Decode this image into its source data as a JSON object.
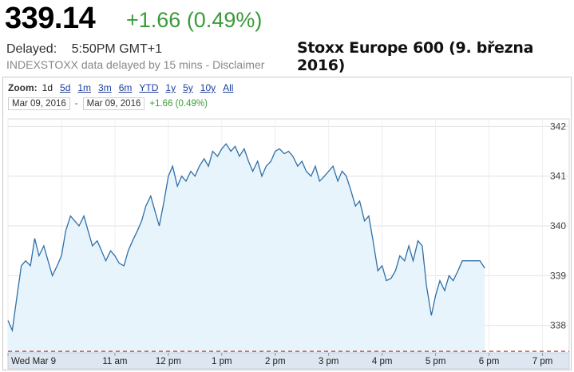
{
  "quote": {
    "price": "339.14",
    "change": "+1.66 (0.49%)",
    "delayed_label": "Delayed:",
    "delayed_time": "5:50PM GMT+1",
    "source_note": "INDEXSTOXX data delayed by 15 mins - Disclaimer"
  },
  "headline": "Stoxx Europe 600 (9. března 2016)",
  "zoom": {
    "label": "Zoom:",
    "options": [
      "1d",
      "5d",
      "1m",
      "3m",
      "6m",
      "YTD",
      "1y",
      "5y",
      "10y",
      "All"
    ],
    "selected": "1d"
  },
  "range": {
    "from": "Mar 09, 2016",
    "separator": "-",
    "to": "Mar 09, 2016",
    "change": "+1.66 (0.49%)"
  },
  "colors": {
    "price_up": "#3a9a3a",
    "line": "#2f6fa8",
    "area_fill": "#e8f4fc",
    "previous_close_line": "#c0392b",
    "link": "#1a3d9c"
  },
  "chart_data": {
    "type": "area",
    "title": "",
    "xlabel": "",
    "ylabel": "",
    "x_ticks": [
      "Wed Mar 9",
      "11 am",
      "12 pm",
      "1 pm",
      "2 pm",
      "3 pm",
      "4 pm",
      "5 pm",
      "6 pm",
      "7 pm"
    ],
    "y_ticks": [
      338,
      339,
      340,
      341,
      342
    ],
    "ylim": [
      337.45,
      342.15
    ],
    "xlim_hours": [
      9.0,
      19.5
    ],
    "grid": true,
    "previous_close": 337.48,
    "series": [
      {
        "points": [
          [
            9.0,
            338.1
          ],
          [
            9.08,
            337.9
          ],
          [
            9.17,
            338.6
          ],
          [
            9.25,
            339.2
          ],
          [
            9.33,
            339.3
          ],
          [
            9.42,
            339.2
          ],
          [
            9.5,
            339.75
          ],
          [
            9.58,
            339.4
          ],
          [
            9.67,
            339.6
          ],
          [
            9.75,
            339.3
          ],
          [
            9.83,
            339.0
          ],
          [
            9.92,
            339.2
          ],
          [
            10.0,
            339.4
          ],
          [
            10.08,
            339.9
          ],
          [
            10.17,
            340.2
          ],
          [
            10.25,
            340.1
          ],
          [
            10.33,
            340.0
          ],
          [
            10.42,
            340.2
          ],
          [
            10.5,
            339.9
          ],
          [
            10.58,
            339.6
          ],
          [
            10.67,
            339.7
          ],
          [
            10.75,
            339.5
          ],
          [
            10.83,
            339.3
          ],
          [
            10.92,
            339.5
          ],
          [
            11.0,
            339.4
          ],
          [
            11.08,
            339.25
          ],
          [
            11.17,
            339.2
          ],
          [
            11.25,
            339.5
          ],
          [
            11.33,
            339.7
          ],
          [
            11.42,
            339.9
          ],
          [
            11.5,
            340.1
          ],
          [
            11.58,
            340.4
          ],
          [
            11.67,
            340.6
          ],
          [
            11.75,
            340.3
          ],
          [
            11.83,
            340.0
          ],
          [
            11.92,
            340.5
          ],
          [
            12.0,
            341.0
          ],
          [
            12.08,
            341.2
          ],
          [
            12.17,
            340.8
          ],
          [
            12.25,
            341.0
          ],
          [
            12.33,
            340.9
          ],
          [
            12.42,
            341.1
          ],
          [
            12.5,
            341.0
          ],
          [
            12.58,
            341.2
          ],
          [
            12.67,
            341.35
          ],
          [
            12.75,
            341.2
          ],
          [
            12.83,
            341.5
          ],
          [
            12.92,
            341.4
          ],
          [
            13.0,
            341.55
          ],
          [
            13.08,
            341.65
          ],
          [
            13.17,
            341.5
          ],
          [
            13.25,
            341.6
          ],
          [
            13.33,
            341.4
          ],
          [
            13.42,
            341.55
          ],
          [
            13.5,
            341.3
          ],
          [
            13.58,
            341.1
          ],
          [
            13.67,
            341.3
          ],
          [
            13.75,
            341.0
          ],
          [
            13.83,
            341.2
          ],
          [
            13.92,
            341.3
          ],
          [
            14.0,
            341.5
          ],
          [
            14.08,
            341.55
          ],
          [
            14.17,
            341.45
          ],
          [
            14.25,
            341.5
          ],
          [
            14.33,
            341.4
          ],
          [
            14.42,
            341.2
          ],
          [
            14.5,
            341.3
          ],
          [
            14.58,
            341.1
          ],
          [
            14.67,
            341.0
          ],
          [
            14.75,
            341.2
          ],
          [
            14.83,
            340.9
          ],
          [
            14.92,
            341.0
          ],
          [
            15.0,
            341.1
          ],
          [
            15.08,
            341.2
          ],
          [
            15.17,
            340.9
          ],
          [
            15.25,
            341.1
          ],
          [
            15.33,
            341.0
          ],
          [
            15.42,
            340.7
          ],
          [
            15.5,
            340.4
          ],
          [
            15.58,
            340.5
          ],
          [
            15.67,
            340.1
          ],
          [
            15.75,
            340.2
          ],
          [
            15.83,
            339.7
          ],
          [
            15.92,
            339.1
          ],
          [
            16.0,
            339.2
          ],
          [
            16.08,
            338.9
          ],
          [
            16.17,
            338.95
          ],
          [
            16.25,
            339.1
          ],
          [
            16.33,
            339.4
          ],
          [
            16.42,
            339.3
          ],
          [
            16.5,
            339.6
          ],
          [
            16.58,
            339.3
          ],
          [
            16.67,
            339.7
          ],
          [
            16.75,
            339.6
          ],
          [
            16.83,
            338.8
          ],
          [
            16.92,
            338.2
          ],
          [
            17.0,
            338.6
          ],
          [
            17.08,
            338.9
          ],
          [
            17.17,
            338.7
          ],
          [
            17.25,
            339.0
          ],
          [
            17.33,
            338.9
          ],
          [
            17.42,
            339.1
          ],
          [
            17.5,
            339.3
          ],
          [
            17.58,
            339.3
          ],
          [
            17.67,
            339.3
          ],
          [
            17.75,
            339.3
          ],
          [
            17.83,
            339.3
          ],
          [
            17.92,
            339.15
          ]
        ]
      }
    ]
  }
}
